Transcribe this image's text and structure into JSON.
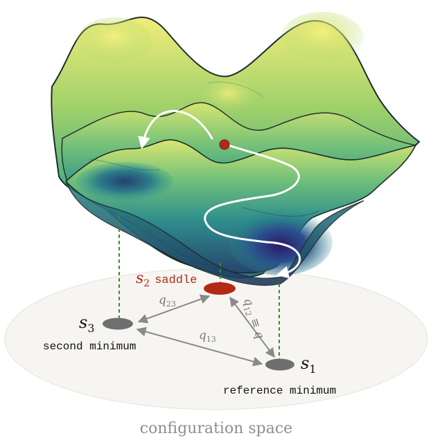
{
  "labels": {
    "s3": {
      "symbol": "s",
      "subscript": "3",
      "description": "second minimum"
    },
    "s1": {
      "symbol": "s",
      "subscript": "1",
      "description": "reference minimum"
    },
    "s2": {
      "symbol": "s",
      "subscript": "2",
      "description": "saddle"
    },
    "edges": {
      "q23": {
        "symbol": "q",
        "subscript": "23"
      },
      "q13": {
        "symbol": "q",
        "subscript": "13"
      },
      "q12": {
        "symbol": "q",
        "subscript": "12",
        "suffix": " ≡ q"
      }
    },
    "plane": "configuration space"
  },
  "colors": {
    "saddle": "#b22a16",
    "minimum": "#6f6f6f",
    "dashed": "#3f8a2c",
    "arrow": "#8a8a8a",
    "plane": "#f6f5f2",
    "caption": "#8e8e8e",
    "surface_low": "#2d1f6e",
    "surface_mid": "#2b8f8a",
    "surface_high": "#f3ef7a"
  }
}
